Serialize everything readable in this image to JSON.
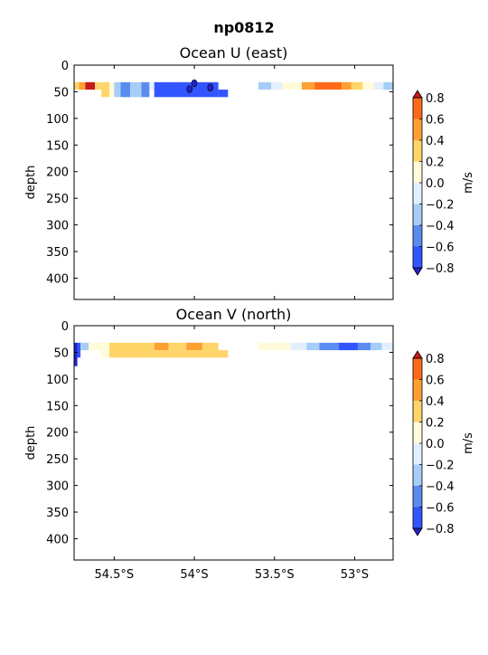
{
  "figure": {
    "title": "np0812",
    "ylabel": "depth",
    "colorbar_label": "m/s",
    "colorbar_levels": [
      -0.8,
      -0.6,
      -0.4,
      -0.2,
      0.0,
      0.2,
      0.4,
      0.6,
      0.8
    ],
    "colorbar_tick_labels": [
      "−0.8",
      "−0.6",
      "−0.4",
      "−0.2",
      "0.0",
      "0.2",
      "0.4",
      "0.6",
      "0.8"
    ],
    "colorbar_colors": [
      "#3355ff",
      "#5a8cf0",
      "#a6cdf7",
      "#e2efff",
      "#fffbd8",
      "#ffd56a",
      "#ffa033",
      "#ff6a1a"
    ],
    "colorbar_extend_low": "#2222c8",
    "colorbar_extend_high": "#c81a1a",
    "x_tick_labels": [
      "54.5°S",
      "54°S",
      "53.5°S",
      "53°S"
    ],
    "y_tick_labels": [
      "0",
      "50",
      "100",
      "150",
      "200",
      "250",
      "300",
      "350",
      "400"
    ]
  },
  "chart_data": [
    {
      "type": "heatmap",
      "title": "Ocean U (east)",
      "ylabel": "depth",
      "colorbar_label": "m/s",
      "x_ticks": [
        -54.5,
        -54.0,
        -53.5,
        -53.0
      ],
      "xlim": [
        -54.75,
        -52.76
      ],
      "y_ticks": [
        0,
        50,
        100,
        150,
        200,
        250,
        300,
        350,
        400
      ],
      "ylim": [
        440,
        0
      ],
      "levels": [
        -0.8,
        -0.6,
        -0.4,
        -0.2,
        0.0,
        0.2,
        0.4,
        0.6,
        0.8
      ],
      "cells": [
        {
          "x0": -54.75,
          "x1": -54.72,
          "y0": 32,
          "y1": 46,
          "v": 0.3
        },
        {
          "x0": -54.72,
          "x1": -54.68,
          "y0": 32,
          "y1": 46,
          "v": 0.5
        },
        {
          "x0": -54.68,
          "x1": -54.62,
          "y0": 32,
          "y1": 46,
          "v": 0.85
        },
        {
          "x0": -54.62,
          "x1": -54.58,
          "y0": 32,
          "y1": 46,
          "v": 0.3
        },
        {
          "x0": -54.58,
          "x1": -54.53,
          "y0": 32,
          "y1": 60,
          "v": 0.3
        },
        {
          "x0": -54.53,
          "x1": -54.5,
          "y0": 32,
          "y1": 60,
          "v": 0.1
        },
        {
          "x0": -54.5,
          "x1": -54.46,
          "y0": 32,
          "y1": 60,
          "v": -0.3
        },
        {
          "x0": -54.46,
          "x1": -54.4,
          "y0": 32,
          "y1": 60,
          "v": -0.5
        },
        {
          "x0": -54.4,
          "x1": -54.33,
          "y0": 32,
          "y1": 60,
          "v": -0.3
        },
        {
          "x0": -54.33,
          "x1": -54.28,
          "y0": 32,
          "y1": 60,
          "v": -0.5
        },
        {
          "x0": -54.28,
          "x1": -54.25,
          "y0": 32,
          "y1": 46,
          "v": -0.1
        },
        {
          "x0": -54.25,
          "x1": -53.85,
          "y0": 32,
          "y1": 60,
          "v": -0.75
        },
        {
          "x0": -53.85,
          "x1": -53.79,
          "y0": 46,
          "y1": 60,
          "v": -0.75
        },
        {
          "x0": -53.6,
          "x1": -53.52,
          "y0": 32,
          "y1": 46,
          "v": -0.3
        },
        {
          "x0": -53.52,
          "x1": -53.45,
          "y0": 32,
          "y1": 46,
          "v": -0.1
        },
        {
          "x0": -53.45,
          "x1": -53.33,
          "y0": 32,
          "y1": 46,
          "v": 0.1
        },
        {
          "x0": -53.33,
          "x1": -53.25,
          "y0": 32,
          "y1": 46,
          "v": 0.5
        },
        {
          "x0": -53.25,
          "x1": -53.08,
          "y0": 32,
          "y1": 46,
          "v": 0.7
        },
        {
          "x0": -53.08,
          "x1": -53.02,
          "y0": 32,
          "y1": 46,
          "v": 0.5
        },
        {
          "x0": -53.02,
          "x1": -52.95,
          "y0": 32,
          "y1": 46,
          "v": 0.3
        },
        {
          "x0": -52.95,
          "x1": -52.88,
          "y0": 32,
          "y1": 46,
          "v": 0.1
        },
        {
          "x0": -52.88,
          "x1": -52.82,
          "y0": 32,
          "y1": 46,
          "v": -0.1
        },
        {
          "x0": -52.82,
          "x1": -52.76,
          "y0": 32,
          "y1": 46,
          "v": -0.3
        }
      ],
      "spots": [
        {
          "x": -54.03,
          "y": 45,
          "v": -0.9
        },
        {
          "x": -53.9,
          "y": 42,
          "v": -0.9
        },
        {
          "x": -54.0,
          "y": 34,
          "v": -0.9
        }
      ]
    },
    {
      "type": "heatmap",
      "title": "Ocean V (north)",
      "ylabel": "depth",
      "colorbar_label": "m/s",
      "x_ticks": [
        -54.5,
        -54.0,
        -53.5,
        -53.0
      ],
      "xlim": [
        -54.75,
        -52.76
      ],
      "y_ticks": [
        0,
        50,
        100,
        150,
        200,
        250,
        300,
        350,
        400
      ],
      "ylim": [
        440,
        0
      ],
      "levels": [
        -0.8,
        -0.6,
        -0.4,
        -0.2,
        0.0,
        0.2,
        0.4,
        0.6,
        0.8
      ],
      "cells": [
        {
          "x0": -54.75,
          "x1": -54.73,
          "y0": 32,
          "y1": 76,
          "v": -0.9
        },
        {
          "x0": -54.73,
          "x1": -54.71,
          "y0": 32,
          "y1": 60,
          "v": -0.7
        },
        {
          "x0": -54.71,
          "x1": -54.66,
          "y0": 32,
          "y1": 46,
          "v": -0.3
        },
        {
          "x0": -54.66,
          "x1": -54.58,
          "y0": 32,
          "y1": 46,
          "v": 0.1
        },
        {
          "x0": -54.58,
          "x1": -54.53,
          "y0": 32,
          "y1": 60,
          "v": 0.1
        },
        {
          "x0": -54.53,
          "x1": -54.25,
          "y0": 32,
          "y1": 60,
          "v": 0.3
        },
        {
          "x0": -54.25,
          "x1": -54.16,
          "y0": 32,
          "y1": 46,
          "v": 0.5
        },
        {
          "x0": -54.16,
          "x1": -54.05,
          "y0": 32,
          "y1": 46,
          "v": 0.3
        },
        {
          "x0": -54.05,
          "x1": -53.95,
          "y0": 32,
          "y1": 46,
          "v": 0.5
        },
        {
          "x0": -53.95,
          "x1": -53.85,
          "y0": 32,
          "y1": 46,
          "v": 0.3
        },
        {
          "x0": -54.25,
          "x1": -53.79,
          "y0": 46,
          "y1": 60,
          "v": 0.3
        },
        {
          "x0": -53.6,
          "x1": -53.4,
          "y0": 32,
          "y1": 46,
          "v": 0.1
        },
        {
          "x0": -53.4,
          "x1": -53.3,
          "y0": 32,
          "y1": 46,
          "v": -0.1
        },
        {
          "x0": -53.3,
          "x1": -53.22,
          "y0": 32,
          "y1": 46,
          "v": -0.3
        },
        {
          "x0": -53.22,
          "x1": -53.1,
          "y0": 32,
          "y1": 46,
          "v": -0.5
        },
        {
          "x0": -53.1,
          "x1": -52.98,
          "y0": 32,
          "y1": 46,
          "v": -0.7
        },
        {
          "x0": -52.98,
          "x1": -52.9,
          "y0": 32,
          "y1": 46,
          "v": -0.5
        },
        {
          "x0": -52.9,
          "x1": -52.83,
          "y0": 32,
          "y1": 46,
          "v": -0.3
        },
        {
          "x0": -52.83,
          "x1": -52.76,
          "y0": 32,
          "y1": 46,
          "v": -0.1
        }
      ],
      "spots": []
    }
  ]
}
